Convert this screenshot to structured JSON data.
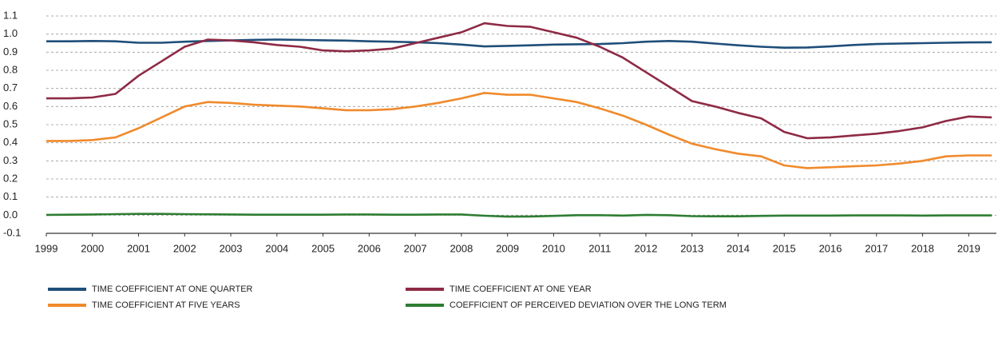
{
  "chart_data": {
    "type": "line",
    "x": [
      1999,
      1999.5,
      2000,
      2000.5,
      2001,
      2001.5,
      2002,
      2002.5,
      2003,
      2003.5,
      2004,
      2004.5,
      2005,
      2005.5,
      2006,
      2006.5,
      2007,
      2007.5,
      2008,
      2008.5,
      2009,
      2009.5,
      2010,
      2010.5,
      2011,
      2011.5,
      2012,
      2012.5,
      2013,
      2013.5,
      2014,
      2014.5,
      2015,
      2015.5,
      2016,
      2016.5,
      2017,
      2017.5,
      2018,
      2018.5,
      2019,
      2019.5
    ],
    "series": [
      {
        "name": "TIME COEFFICIENT AT ONE QUARTER",
        "color": "#1f4e79",
        "values": [
          0.96,
          0.96,
          0.962,
          0.96,
          0.952,
          0.952,
          0.958,
          0.962,
          0.965,
          0.968,
          0.97,
          0.968,
          0.966,
          0.964,
          0.96,
          0.958,
          0.955,
          0.95,
          0.942,
          0.932,
          0.935,
          0.938,
          0.942,
          0.944,
          0.945,
          0.95,
          0.958,
          0.962,
          0.958,
          0.948,
          0.938,
          0.93,
          0.925,
          0.926,
          0.932,
          0.94,
          0.945,
          0.948,
          0.95,
          0.952,
          0.954,
          0.955
        ]
      },
      {
        "name": "TIME COEFFICIENT AT ONE YEAR",
        "color": "#8e2a45",
        "values": [
          0.645,
          0.645,
          0.65,
          0.67,
          0.77,
          0.85,
          0.93,
          0.97,
          0.965,
          0.955,
          0.94,
          0.93,
          0.91,
          0.905,
          0.91,
          0.92,
          0.95,
          0.98,
          1.01,
          1.06,
          1.045,
          1.04,
          1.01,
          0.98,
          0.93,
          0.87,
          0.79,
          0.71,
          0.63,
          0.6,
          0.565,
          0.535,
          0.46,
          0.425,
          0.43,
          0.44,
          0.45,
          0.465,
          0.485,
          0.52,
          0.545,
          0.54
        ]
      },
      {
        "name": "TIME COEFFICIENT AT FIVE YEARS",
        "color": "#f08a2c",
        "values": [
          0.41,
          0.41,
          0.415,
          0.43,
          0.48,
          0.54,
          0.6,
          0.625,
          0.62,
          0.61,
          0.605,
          0.6,
          0.59,
          0.58,
          0.58,
          0.585,
          0.6,
          0.62,
          0.645,
          0.675,
          0.665,
          0.665,
          0.645,
          0.625,
          0.59,
          0.55,
          0.5,
          0.445,
          0.395,
          0.365,
          0.34,
          0.325,
          0.275,
          0.26,
          0.265,
          0.27,
          0.275,
          0.285,
          0.3,
          0.325,
          0.33,
          0.33
        ]
      },
      {
        "name": "COEFFICIENT OF PERCEIVED DEVIATION OVER THE LONG TERM",
        "color": "#2e7d32",
        "values": [
          0.002,
          0.003,
          0.004,
          0.006,
          0.007,
          0.007,
          0.006,
          0.005,
          0.004,
          0.003,
          0.003,
          0.003,
          0.003,
          0.004,
          0.004,
          0.003,
          0.003,
          0.004,
          0.004,
          -0.003,
          -0.008,
          -0.007,
          -0.004,
          0.0,
          0.0,
          -0.002,
          0.002,
          0.0,
          -0.005,
          -0.006,
          -0.006,
          -0.004,
          -0.002,
          -0.002,
          -0.002,
          -0.001,
          -0.001,
          -0.001,
          -0.002,
          -0.001,
          -0.001,
          -0.001
        ]
      }
    ],
    "xlim": [
      1999,
      2019.6
    ],
    "xticks": [
      1999,
      2000,
      2001,
      2002,
      2003,
      2004,
      2005,
      2006,
      2007,
      2008,
      2009,
      2010,
      2011,
      2012,
      2013,
      2014,
      2015,
      2016,
      2017,
      2018,
      2019
    ],
    "ylim": [
      -0.1,
      1.1
    ],
    "yticks": [
      -0.1,
      {
        "value": 0,
        "label": "0.0"
      },
      0.1,
      0.2,
      0.3,
      0.4,
      0.5,
      0.6,
      0.7,
      0.8,
      0.9,
      {
        "value": 1,
        "label": "1.0"
      },
      1.1
    ],
    "grid": true
  }
}
